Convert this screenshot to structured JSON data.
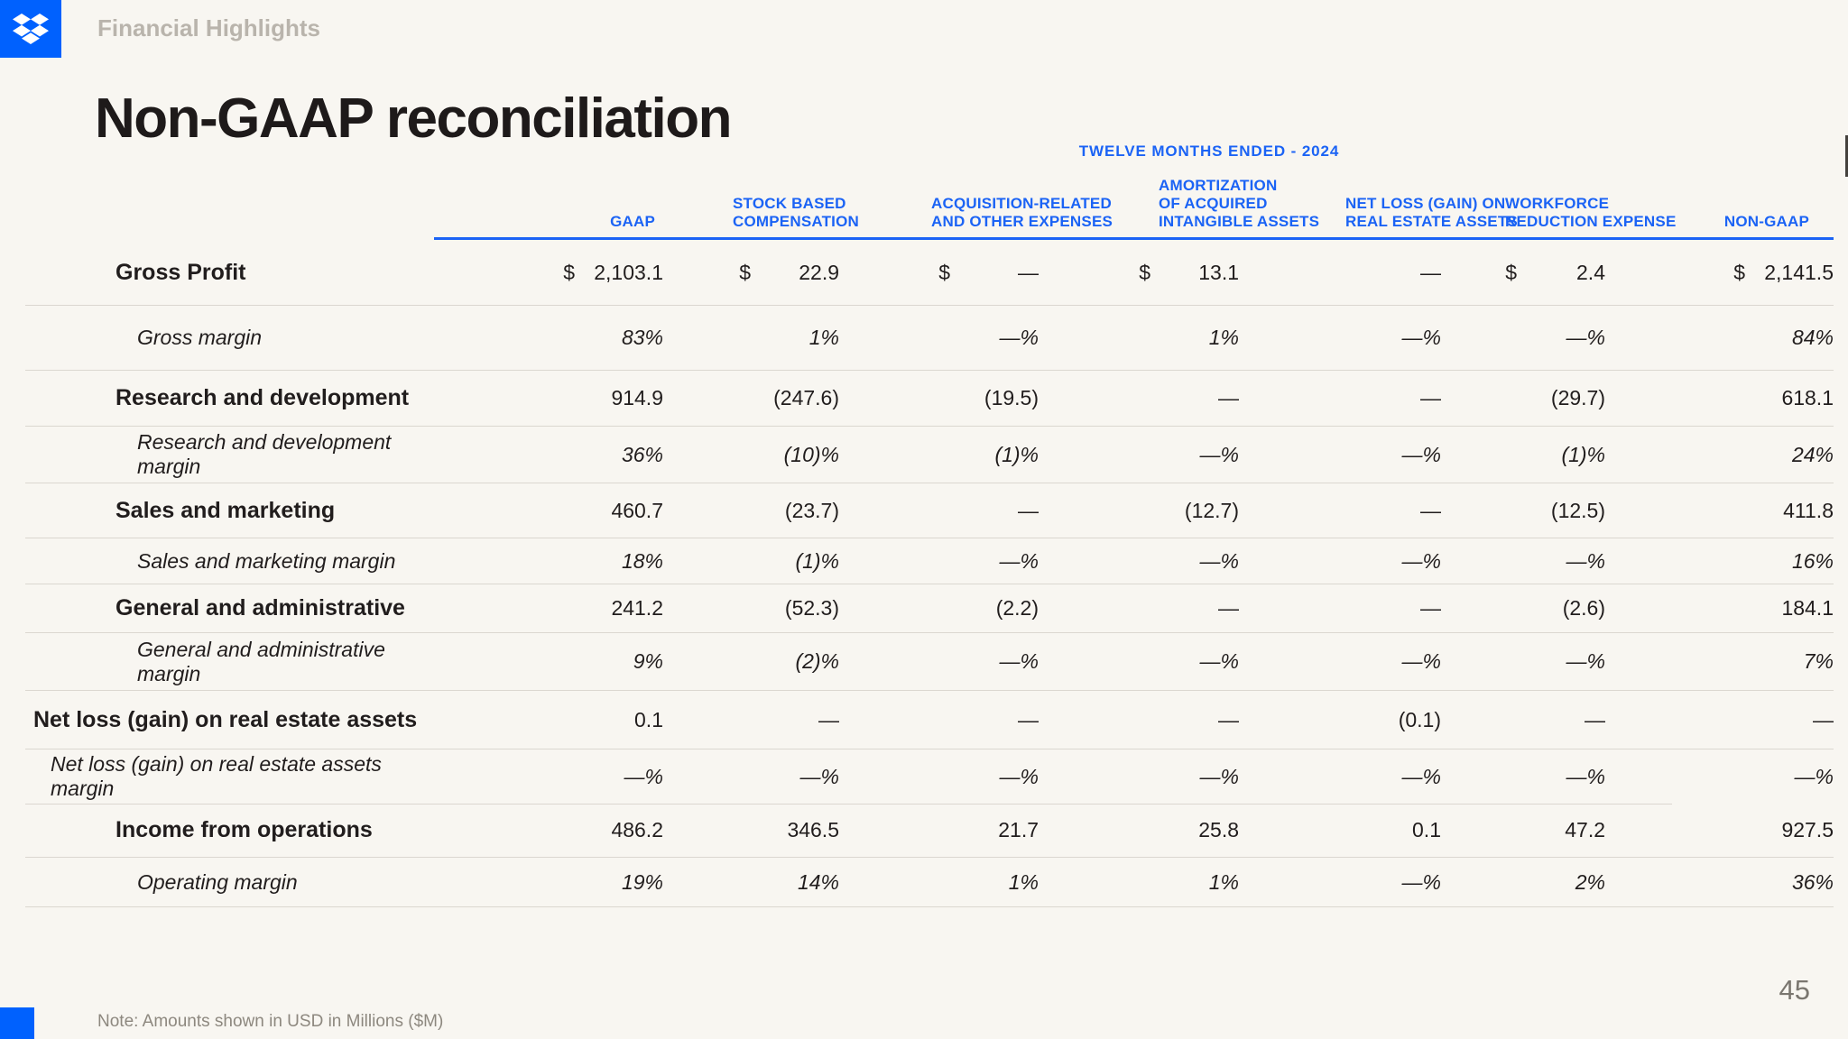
{
  "brand": {
    "logo_icon": "dropbox-icon",
    "accent_color": "#0061FE",
    "header_blue": "#1b63f5",
    "background_color": "#F8F6F1"
  },
  "header": {
    "section_label": "Financial Highlights"
  },
  "title": "Non-GAAP reconciliation",
  "table": {
    "period_label": "TWELVE MONTHS ENDED - 2024",
    "columns": [
      {
        "lines": [
          "GAAP"
        ]
      },
      {
        "lines": [
          "STOCK BASED",
          "COMPENSATION"
        ]
      },
      {
        "lines": [
          "ACQUISITION-RELATED",
          "AND OTHER EXPENSES"
        ]
      },
      {
        "lines": [
          "AMORTIZATION",
          "OF ACQUIRED",
          "INTANGIBLE ASSETS"
        ]
      },
      {
        "lines": [
          "NET LOSS (GAIN) ON",
          "REAL ESTATE ASSETS"
        ]
      },
      {
        "lines": [
          "WORKFORCE",
          "REDUCTION EXPENSE"
        ]
      },
      {
        "lines": [
          "NON-GAAP"
        ]
      }
    ],
    "rows": [
      {
        "label": "Gross Profit",
        "variant": "item",
        "indent": 2,
        "dollars": [
          true,
          true,
          true,
          true,
          false,
          true,
          true
        ],
        "cells": [
          "2,103.1",
          "22.9",
          "—",
          "13.1",
          "—",
          "2.4",
          "2,141.5"
        ]
      },
      {
        "label": "Gross margin",
        "variant": "margin",
        "indent": 3,
        "cells": [
          "83%",
          "1%",
          "—%",
          "1%",
          "—%",
          "—%",
          "84%"
        ]
      },
      {
        "label": "Research and development",
        "variant": "item",
        "indent": 2,
        "cells": [
          "914.9",
          "(247.6)",
          "(19.5)",
          "—",
          "—",
          "(29.7)",
          "618.1"
        ]
      },
      {
        "label": "Research and development margin",
        "variant": "margin",
        "indent": 3,
        "cells": [
          "36%",
          "(10)%",
          "(1)%",
          "—%",
          "—%",
          "(1)%",
          "24%"
        ]
      },
      {
        "label": "Sales and marketing",
        "variant": "item",
        "indent": 2,
        "cells": [
          "460.7",
          "(23.7)",
          "—",
          "(12.7)",
          "—",
          "(12.5)",
          "411.8"
        ]
      },
      {
        "label": "Sales and marketing margin",
        "variant": "margin",
        "indent": 3,
        "cells": [
          "18%",
          "(1)%",
          "—%",
          "—%",
          "—%",
          "—%",
          "16%"
        ]
      },
      {
        "label": "General and administrative",
        "variant": "item",
        "indent": 2,
        "cells": [
          "241.2",
          "(52.3)",
          "(2.2)",
          "—",
          "—",
          "(2.6)",
          "184.1"
        ]
      },
      {
        "label": "General and administrative margin",
        "variant": "margin",
        "indent": 3,
        "cells": [
          "9%",
          "(2)%",
          "—%",
          "—%",
          "—%",
          "—%",
          "7%"
        ]
      },
      {
        "label": "Net loss (gain) on real estate assets",
        "variant": "item",
        "indent": 0,
        "cells": [
          "0.1",
          "—",
          "—",
          "—",
          "(0.1)",
          "—",
          "—"
        ]
      },
      {
        "label": "Net loss (gain) on real estate assets margin",
        "variant": "margin",
        "indent": 1,
        "short_divider_after": true,
        "cells": [
          "—%",
          "—%",
          "—%",
          "—%",
          "—%",
          "—%",
          "—%"
        ]
      },
      {
        "label": "Income from operations",
        "variant": "item",
        "indent": 2,
        "cells": [
          "486.2",
          "346.5",
          "21.7",
          "25.8",
          "0.1",
          "47.2",
          "927.5"
        ]
      },
      {
        "label": "Operating margin",
        "variant": "margin",
        "indent": 3,
        "cells": [
          "19%",
          "14%",
          "1%",
          "1%",
          "—%",
          "2%",
          "36%"
        ]
      }
    ]
  },
  "footer": {
    "note": "Note: Amounts shown in USD in Millions ($M)",
    "page_number": "45"
  }
}
